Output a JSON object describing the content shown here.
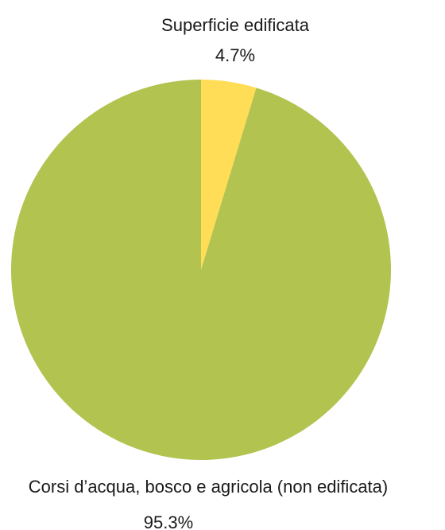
{
  "chart_data": {
    "type": "pie",
    "title": "",
    "slices": [
      {
        "label": "Superficie edificata",
        "value": 4.7,
        "value_label": "4.7%",
        "color": "#FFDD57"
      },
      {
        "label": "Corsi d’acqua, bosco e agricola (non edificata)",
        "value": 95.3,
        "value_label": "95.3%",
        "color": "#B2C350"
      }
    ],
    "start_angle": "12 o'clock",
    "direction": "clockwise",
    "legend": "none"
  }
}
